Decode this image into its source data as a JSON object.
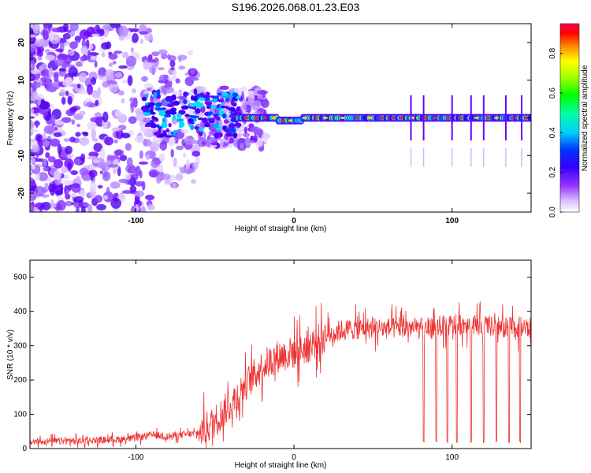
{
  "title": "S196.2026.068.01.23.E03",
  "chart_data": [
    {
      "type": "heatmap",
      "xlabel": "Height of straight line (km)",
      "ylabel": "Frequency (Hz)",
      "xlim": [
        -167,
        150
      ],
      "ylim": [
        -25,
        25
      ],
      "x_ticks": [
        -100,
        0,
        100
      ],
      "x_tick_labels": [
        "-100",
        "0",
        "100"
      ],
      "y_ticks": [
        -20,
        -10,
        0,
        10,
        20
      ],
      "y_tick_labels": [
        "-20",
        "-10",
        "0",
        "10",
        "20"
      ],
      "colorbar": {
        "label": "Normalized spectral amplitude",
        "range": [
          0,
          0.95
        ],
        "ticks": [
          0.0,
          0.2,
          0.4,
          0.6,
          0.8
        ],
        "tick_labels": [
          "0.0",
          "0.2",
          "0.4",
          "0.6",
          "0.8"
        ],
        "colors": [
          "#ffffff",
          "#cc99ff",
          "#6600ff",
          "#0000ff",
          "#00aaff",
          "#00ffff",
          "#00ff00",
          "#aaff00",
          "#ffff00",
          "#ff8800",
          "#ff0000",
          "#ff0066"
        ]
      },
      "description_values": {
        "main_band_frequency_hz": 0,
        "spike_heights_km": [
          74,
          82,
          100,
          112,
          120,
          134,
          144
        ]
      }
    },
    {
      "type": "line",
      "xlabel": "Height of straight line (km)",
      "ylabel": "SNR (10 * v/v)",
      "xlim": [
        -167,
        150
      ],
      "ylim": [
        0,
        550
      ],
      "x_ticks": [
        -100,
        0,
        100
      ],
      "x_tick_labels": [
        "-100",
        "0",
        "100"
      ],
      "y_ticks": [
        0,
        100,
        200,
        300,
        400,
        500
      ],
      "y_tick_labels": [
        "0",
        "100",
        "200",
        "300",
        "400",
        "500"
      ],
      "line_color": "#ee3333",
      "series": [
        {
          "name": "SNR",
          "x": [
            -167,
            -140,
            -120,
            -100,
            -90,
            -80,
            -60,
            -50,
            -40,
            -30,
            -20,
            -10,
            0,
            10,
            20,
            30,
            40,
            50,
            60,
            70,
            80,
            90,
            100,
            110,
            120,
            130,
            140,
            150
          ],
          "values": [
            20,
            22,
            25,
            30,
            40,
            35,
            45,
            80,
            130,
            190,
            240,
            270,
            280,
            300,
            330,
            345,
            350,
            352,
            350,
            355,
            350,
            355,
            360,
            365,
            360,
            350,
            355,
            350
          ]
        }
      ],
      "dropouts_km": [
        82,
        90,
        97,
        103,
        112,
        120,
        128,
        136,
        143
      ]
    }
  ]
}
